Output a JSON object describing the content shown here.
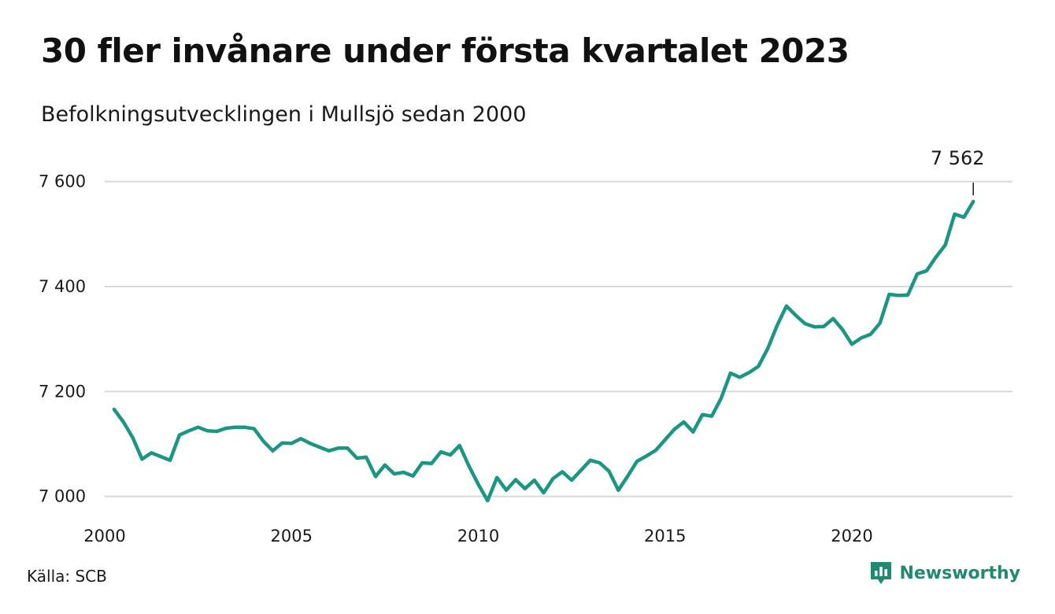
{
  "title": "30 fler invånare under första kvartalet 2023",
  "subtitle": "Befolkningsutvecklingen i Mullsjö sedan 2000",
  "source": "Källa: SCB",
  "brand": "Newsworthy",
  "colors": {
    "line": "#1a9683",
    "grid": "#d9d9d9",
    "brand": "#1f8a6f"
  },
  "icons": {
    "brand_logo": "newsworthy-logo-icon"
  },
  "chart_data": {
    "type": "line",
    "title": "30 fler invånare under första kvartalet 2023",
    "subtitle": "Befolkningsutvecklingen i Mullsjö sedan 2000",
    "xlabel": "",
    "ylabel": "",
    "ylim": [
      6980,
      7640
    ],
    "xlim": [
      2000.0,
      2024.3
    ],
    "grid": true,
    "y_ticks": [
      7000,
      7200,
      7400,
      7600
    ],
    "y_tick_labels": [
      "7 000",
      "7 200",
      "7 400",
      "7 600"
    ],
    "x_ticks": [
      2000,
      2005,
      2010,
      2015,
      2020
    ],
    "x_tick_labels": [
      "2000",
      "2005",
      "2010",
      "2015",
      "2020"
    ],
    "annotation": {
      "label": "7 562",
      "value": 7562
    },
    "series": [
      {
        "x": [
          2000.25,
          2000.5,
          2000.75,
          2001.0,
          2001.25,
          2001.5,
          2001.75,
          2002.0,
          2002.25,
          2002.5,
          2002.75,
          2003.0,
          2003.25,
          2003.5,
          2003.75,
          2004.0,
          2004.25,
          2004.5,
          2004.75,
          2005.0,
          2005.25,
          2005.5,
          2005.75,
          2006.0,
          2006.25,
          2006.5,
          2006.75,
          2007.0,
          2007.25,
          2007.5,
          2007.75,
          2008.0,
          2008.25,
          2008.5,
          2008.75,
          2009.0,
          2009.25,
          2009.5,
          2009.75,
          2010.0,
          2010.25,
          2010.5,
          2010.75,
          2011.0,
          2011.25,
          2011.5,
          2011.75,
          2012.0,
          2012.25,
          2012.5,
          2012.75,
          2013.0,
          2013.25,
          2013.5,
          2013.75,
          2014.0,
          2014.25,
          2014.5,
          2014.75,
          2015.0,
          2015.25,
          2015.5,
          2015.75,
          2016.0,
          2016.25,
          2016.5,
          2016.75,
          2017.0,
          2017.25,
          2017.5,
          2017.75,
          2018.0,
          2018.25,
          2018.5,
          2018.75,
          2019.0,
          2019.25,
          2019.5,
          2019.75,
          2020.0,
          2020.25,
          2020.5,
          2020.75,
          2021.0,
          2021.25,
          2021.5,
          2021.75,
          2022.0,
          2022.25,
          2022.5,
          2022.75,
          2023.0,
          2023.25
        ],
        "values": [
          7166,
          7142,
          7112,
          7071,
          7083,
          7076,
          7069,
          7117,
          7125,
          7132,
          7125,
          7124,
          7130,
          7132,
          7132,
          7129,
          7105,
          7087,
          7102,
          7101,
          7110,
          7101,
          7094,
          7087,
          7092,
          7092,
          7073,
          7075,
          7038,
          7060,
          7043,
          7046,
          7039,
          7064,
          7063,
          7085,
          7079,
          7097,
          7058,
          7023,
          6992,
          7036,
          7012,
          7032,
          7015,
          7031,
          7007,
          7034,
          7047,
          7031,
          7050,
          7069,
          7064,
          7048,
          7012,
          7039,
          7067,
          7077,
          7088,
          7108,
          7128,
          7142,
          7123,
          7156,
          7153,
          7187,
          7235,
          7227,
          7236,
          7248,
          7282,
          7326,
          7363,
          7345,
          7329,
          7323,
          7324,
          7339,
          7318,
          7290,
          7302,
          7309,
          7330,
          7385,
          7383,
          7384,
          7424,
          7430,
          7456,
          7479,
          7538,
          7532,
          7562
        ]
      }
    ]
  }
}
